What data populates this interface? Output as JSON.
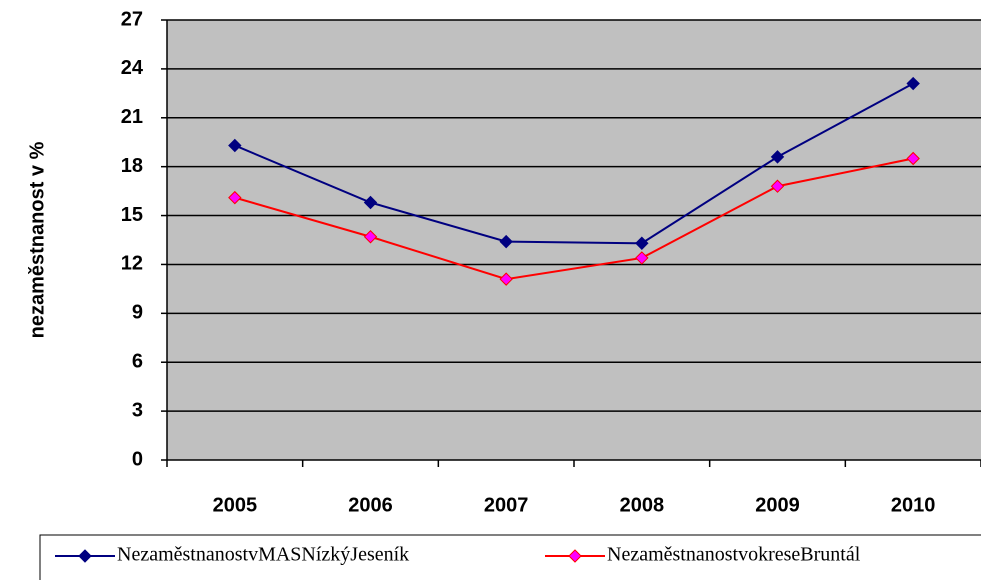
{
  "chart_data": {
    "type": "line",
    "y_label": "nezaměstnanost v %",
    "categories": [
      "2005",
      "2006",
      "2007",
      "2008",
      "2009",
      "2010"
    ],
    "series": [
      {
        "name": "NezaměstnanostvMASNízkýJeseník",
        "color": "#000080",
        "marker_fill": "#000080",
        "values": [
          19.3,
          15.8,
          13.4,
          13.3,
          18.6,
          23.1
        ]
      },
      {
        "name": "NezaměstnanostvokreseBruntál",
        "color": "#ff0000",
        "marker_fill": "#ff00ff",
        "values": [
          16.1,
          13.7,
          11.1,
          12.4,
          16.8,
          18.5
        ]
      }
    ],
    "ylim": [
      0,
      27
    ],
    "yticks": [
      0,
      3,
      6,
      9,
      12,
      15,
      18,
      21,
      24,
      27
    ],
    "grid": true,
    "plot_bg": "#c0c0c0"
  }
}
